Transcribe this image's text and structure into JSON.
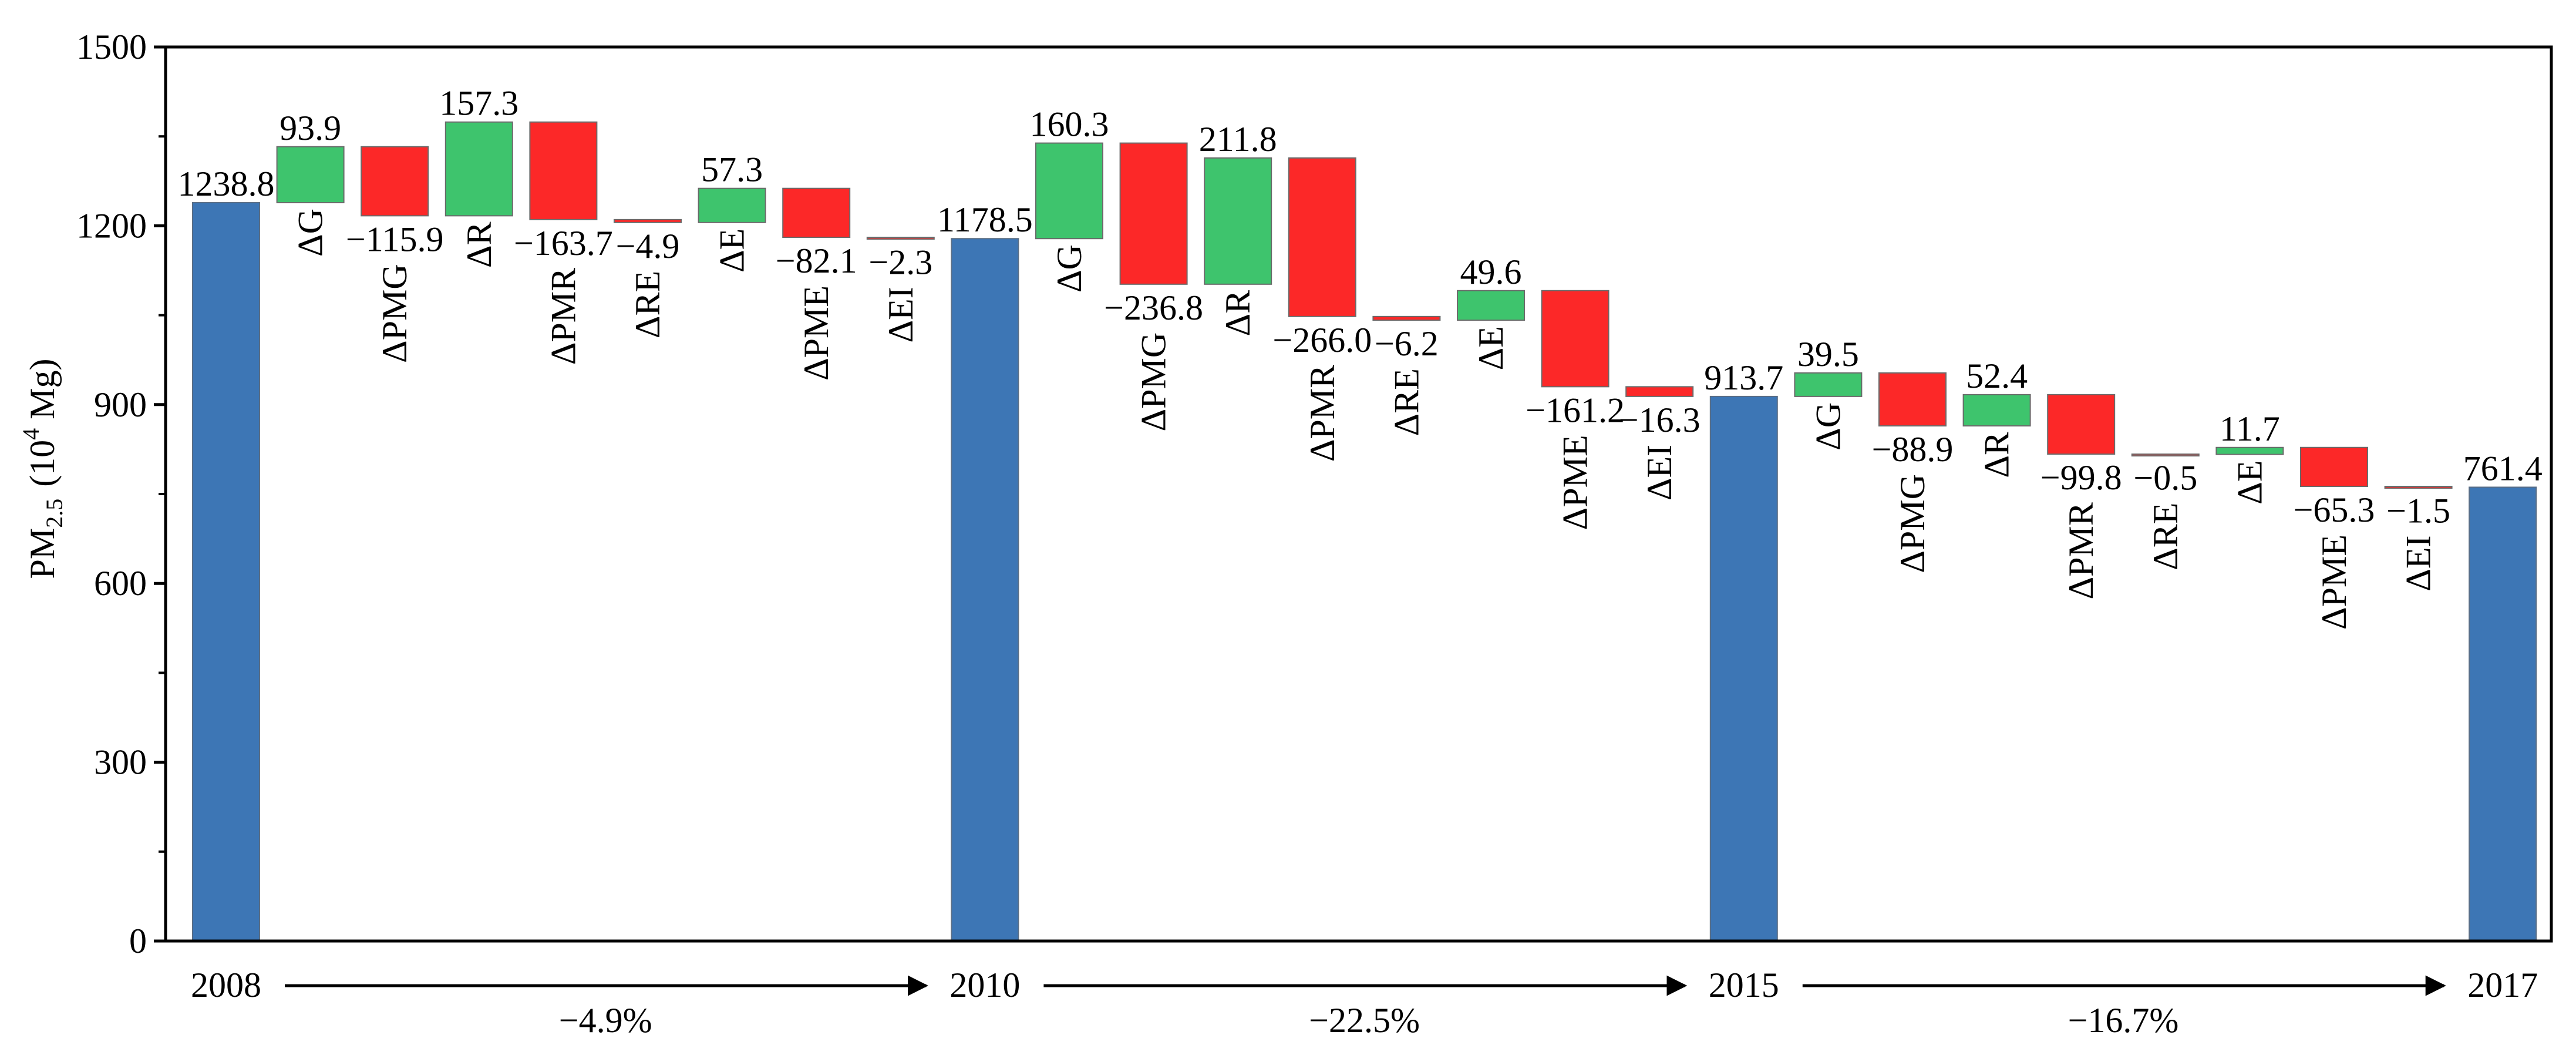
{
  "chart_data": {
    "type": "waterfall",
    "ylabel": "PM",
    "ylabel_sub": "2.5",
    "ylabel_paren_open": "(10",
    "ylabel_sup": "4",
    "ylabel_unit": " Mg)",
    "ylim": [
      0,
      1500
    ],
    "yticks": [
      0,
      300,
      600,
      900,
      1200,
      1500
    ],
    "yticks_minor": [
      150,
      450,
      750,
      1050,
      1350
    ],
    "colors": {
      "total": "#3d76b5",
      "increase": "#3ec46d",
      "decrease": "#fc2828",
      "axis": "#000000"
    },
    "groups": [
      {
        "start_year": "2008",
        "start_value": 1238.8,
        "start_label": "1238.8",
        "components": [
          {
            "name": "ΔG",
            "value": 93.9,
            "label": "93.9"
          },
          {
            "name": "ΔPMG",
            "value": -115.9,
            "label": "−115.9"
          },
          {
            "name": "ΔR",
            "value": 157.3,
            "label": "157.3"
          },
          {
            "name": "ΔPMR",
            "value": -163.7,
            "label": "−163.7"
          },
          {
            "name": "ΔRE",
            "value": -4.9,
            "label": "−4.9"
          },
          {
            "name": "ΔE",
            "value": 57.3,
            "label": "57.3"
          },
          {
            "name": "ΔPME",
            "value": -82.1,
            "label": "−82.1"
          },
          {
            "name": "ΔEI",
            "value": -2.3,
            "label": "−2.3"
          }
        ],
        "change": "−4.9%"
      },
      {
        "start_year": "2010",
        "start_value": 1178.5,
        "start_label": "1178.5",
        "components": [
          {
            "name": "ΔG",
            "value": 160.3,
            "label": "160.3"
          },
          {
            "name": "ΔPMG",
            "value": -236.8,
            "label": "−236.8"
          },
          {
            "name": "ΔR",
            "value": 211.8,
            "label": "211.8"
          },
          {
            "name": "ΔPMR",
            "value": -266.0,
            "label": "−266.0"
          },
          {
            "name": "ΔRE",
            "value": -6.2,
            "label": "−6.2"
          },
          {
            "name": "ΔE",
            "value": 49.6,
            "label": "49.6"
          },
          {
            "name": "ΔPME",
            "value": -161.2,
            "label": "−161.2"
          },
          {
            "name": "ΔEI",
            "value": -16.3,
            "label": "−16.3"
          }
        ],
        "change": "−22.5%"
      },
      {
        "start_year": "2015",
        "start_value": 913.7,
        "start_label": "913.7",
        "components": [
          {
            "name": "ΔG",
            "value": 39.5,
            "label": "39.5"
          },
          {
            "name": "ΔPMG",
            "value": -88.9,
            "label": "−88.9"
          },
          {
            "name": "ΔR",
            "value": 52.4,
            "label": "52.4"
          },
          {
            "name": "ΔPMR",
            "value": -99.8,
            "label": "−99.8"
          },
          {
            "name": "ΔRE",
            "value": -0.5,
            "label": "−0.5"
          },
          {
            "name": "ΔE",
            "value": 11.7,
            "label": "11.7"
          },
          {
            "name": "ΔPME",
            "value": -65.3,
            "label": "−65.3"
          },
          {
            "name": "ΔEI",
            "value": -1.5,
            "label": "−1.5"
          }
        ],
        "change": "−16.7%"
      }
    ],
    "end_year": "2017",
    "end_value": 761.4,
    "end_label": "761.4"
  }
}
